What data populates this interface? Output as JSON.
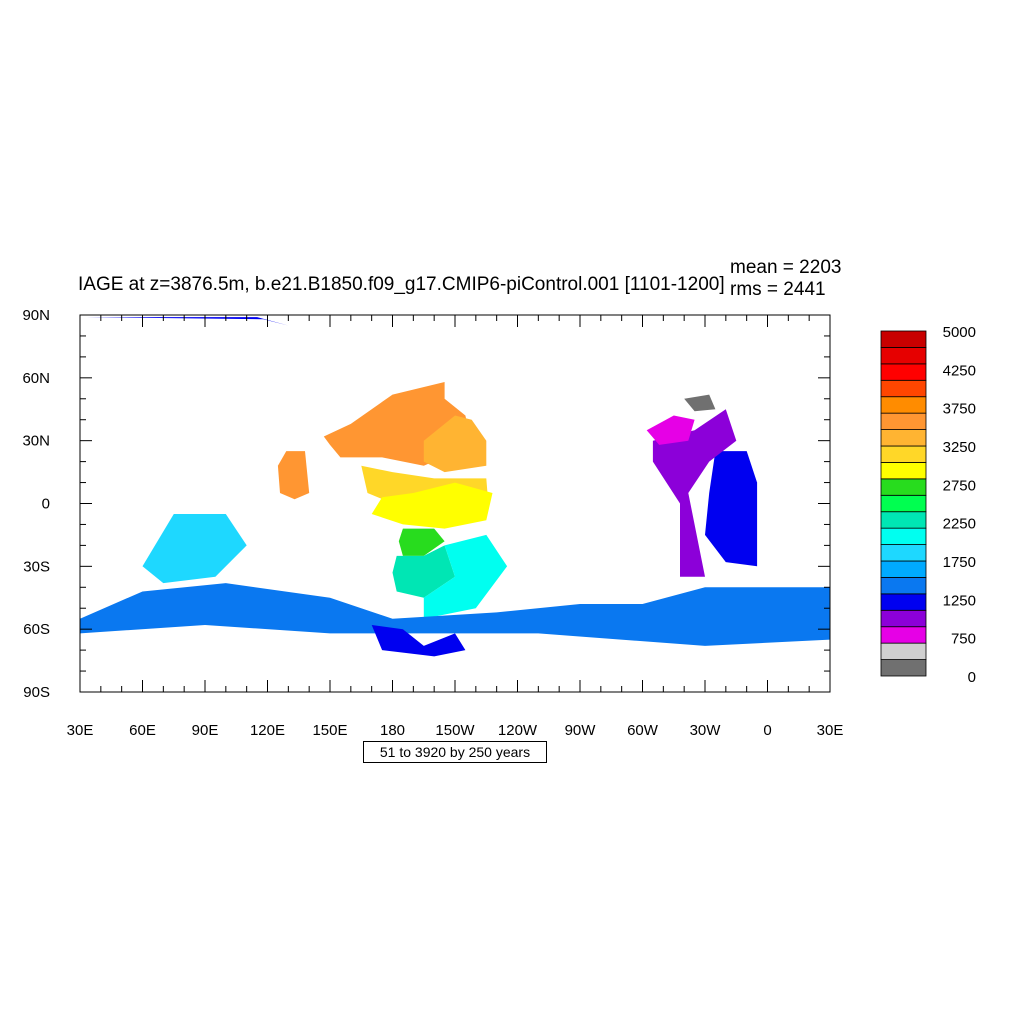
{
  "title": "IAGE at z=3876.5m, b.e21.B1850.f09_g17.CMIP6-piControl.001 [1101-1200]",
  "stats": {
    "mean": "mean = 2203",
    "rms": "rms = 2441"
  },
  "axes": {
    "x_labels": [
      "30E",
      "60E",
      "90E",
      "120E",
      "150E",
      "180",
      "150W",
      "120W",
      "90W",
      "60W",
      "30W",
      "0",
      "30E"
    ],
    "y_labels": [
      "90N",
      "60N",
      "30N",
      "0",
      "30S",
      "60S",
      "90S"
    ]
  },
  "info_box": "51 to 3920 by 250 years",
  "colorbar": {
    "colors": [
      "#707070",
      "#d0d0d0",
      "#e600e6",
      "#8c00d9",
      "#0000f0",
      "#0a78f0",
      "#00aaff",
      "#1ed8ff",
      "#00fff0",
      "#00e6b4",
      "#00ff50",
      "#28dc1e",
      "#ffff00",
      "#ffd728",
      "#ffb432",
      "#ff9632",
      "#ff8c00",
      "#ff4600",
      "#ff0000",
      "#e60000",
      "#c80000"
    ],
    "labels": [
      "0",
      "750",
      "1250",
      "1750",
      "2250",
      "2750",
      "3250",
      "3750",
      "4250",
      "5000"
    ]
  },
  "chart_data": {
    "type": "heatmap",
    "variable": "IAGE",
    "depth": "z=3876.5m",
    "case": "b.e21.B1850.f09_g17.CMIP6-piControl.001",
    "years": "1101-1200",
    "mean": 2203,
    "rms": 2441,
    "x_range": [
      30,
      390
    ],
    "y_range": [
      -90,
      90
    ],
    "contour_min": 51,
    "contour_max": 3920,
    "contour_interval": 250,
    "regions": [
      {
        "name": "north-pacific-orange",
        "level": 4000,
        "color": "#ff9632",
        "pts": [
          [
            147,
            32
          ],
          [
            160,
            38
          ],
          [
            180,
            52
          ],
          [
            205,
            58
          ],
          [
            205,
            50
          ],
          [
            215,
            42
          ],
          [
            218,
            28
          ],
          [
            195,
            18
          ],
          [
            175,
            22
          ],
          [
            155,
            22
          ],
          [
            150,
            28
          ]
        ]
      },
      {
        "name": "central-pacific-lightorange",
        "level": 3750,
        "color": "#ffb432",
        "pts": [
          [
            195,
            30
          ],
          [
            210,
            42
          ],
          [
            218,
            40
          ],
          [
            225,
            30
          ],
          [
            225,
            18
          ],
          [
            205,
            15
          ],
          [
            195,
            20
          ]
        ]
      },
      {
        "name": "west-pacific-orange",
        "level": 4000,
        "color": "#ff9632",
        "pts": [
          [
            129,
            25
          ],
          [
            138,
            25
          ],
          [
            140,
            5
          ],
          [
            133,
            2
          ],
          [
            126,
            5
          ],
          [
            125,
            18
          ]
        ]
      },
      {
        "name": "tropical-pacific-gold",
        "level": 3500,
        "color": "#ffd728",
        "pts": [
          [
            165,
            18
          ],
          [
            180,
            15
          ],
          [
            200,
            12
          ],
          [
            225,
            12
          ],
          [
            226,
            0
          ],
          [
            205,
            -5
          ],
          [
            185,
            -2
          ],
          [
            168,
            5
          ]
        ]
      },
      {
        "name": "equatorial-yellow",
        "level": 3250,
        "color": "#ffff00",
        "pts": [
          [
            170,
            -5
          ],
          [
            185,
            -10
          ],
          [
            205,
            -12
          ],
          [
            225,
            -8
          ],
          [
            228,
            5
          ],
          [
            210,
            10
          ],
          [
            190,
            5
          ],
          [
            175,
            3
          ]
        ]
      },
      {
        "name": "south-pacific-green",
        "level": 2800,
        "color": "#28dc1e",
        "pts": [
          [
            185,
            -12
          ],
          [
            200,
            -12
          ],
          [
            205,
            -18
          ],
          [
            195,
            -25
          ],
          [
            185,
            -25
          ],
          [
            183,
            -18
          ]
        ]
      },
      {
        "name": "south-pacific-mint",
        "level": 2600,
        "color": "#00e6b4",
        "pts": [
          [
            182,
            -25
          ],
          [
            195,
            -25
          ],
          [
            205,
            -20
          ],
          [
            210,
            -35
          ],
          [
            195,
            -45
          ],
          [
            182,
            -42
          ],
          [
            180,
            -33
          ]
        ]
      },
      {
        "name": "south-pacific-cyan",
        "level": 2100,
        "color": "#00fff0",
        "pts": [
          [
            205,
            -20
          ],
          [
            225,
            -15
          ],
          [
            235,
            -30
          ],
          [
            220,
            -50
          ],
          [
            195,
            -55
          ],
          [
            195,
            -45
          ],
          [
            210,
            -35
          ]
        ]
      },
      {
        "name": "indian-ocean-lightblue",
        "level": 1800,
        "color": "#1ed8ff",
        "pts": [
          [
            60,
            -30
          ],
          [
            75,
            -5
          ],
          [
            100,
            -5
          ],
          [
            110,
            -20
          ],
          [
            95,
            -35
          ],
          [
            70,
            -38
          ]
        ]
      },
      {
        "name": "southern-ocean-band",
        "level": 1300,
        "color": "#0a78f0",
        "pts": [
          [
            30,
            -55
          ],
          [
            60,
            -42
          ],
          [
            100,
            -38
          ],
          [
            150,
            -45
          ],
          [
            180,
            -55
          ],
          [
            230,
            -52
          ],
          [
            270,
            -48
          ],
          [
            300,
            -48
          ],
          [
            330,
            -40
          ],
          [
            390,
            -40
          ],
          [
            390,
            -65
          ],
          [
            330,
            -68
          ],
          [
            250,
            -62
          ],
          [
            200,
            -62
          ],
          [
            150,
            -62
          ],
          [
            90,
            -58
          ],
          [
            30,
            -62
          ]
        ]
      },
      {
        "name": "atlantic-blue",
        "level": 1000,
        "color": "#0000f0",
        "pts": [
          [
            335,
            25
          ],
          [
            350,
            25
          ],
          [
            355,
            10
          ],
          [
            355,
            -30
          ],
          [
            340,
            -28
          ],
          [
            330,
            -15
          ],
          [
            332,
            5
          ]
        ]
      },
      {
        "name": "atlantic-purple",
        "level": 800,
        "color": "#8c00d9",
        "pts": [
          [
            305,
            30
          ],
          [
            325,
            35
          ],
          [
            340,
            45
          ],
          [
            345,
            30
          ],
          [
            332,
            20
          ],
          [
            322,
            5
          ],
          [
            330,
            -35
          ],
          [
            318,
            -35
          ],
          [
            318,
            0
          ],
          [
            305,
            20
          ]
        ]
      },
      {
        "name": "north-atlantic-magenta",
        "level": 600,
        "color": "#e600e6",
        "pts": [
          [
            302,
            35
          ],
          [
            315,
            42
          ],
          [
            325,
            40
          ],
          [
            322,
            30
          ],
          [
            308,
            28
          ]
        ]
      },
      {
        "name": "greenland-gray",
        "level": 100,
        "color": "#707070",
        "pts": [
          [
            320,
            50
          ],
          [
            332,
            52
          ],
          [
            335,
            45
          ],
          [
            325,
            44
          ]
        ]
      },
      {
        "name": "arctic-blue",
        "level": 1000,
        "color": "#0000f0",
        "pts": [
          [
            33,
            89
          ],
          [
            115,
            89
          ],
          [
            130,
            85
          ],
          [
            118,
            88
          ]
        ]
      },
      {
        "name": "ross-sea-blue",
        "level": 1000,
        "color": "#0000f0",
        "pts": [
          [
            170,
            -58
          ],
          [
            185,
            -60
          ],
          [
            195,
            -68
          ],
          [
            210,
            -62
          ],
          [
            215,
            -70
          ],
          [
            200,
            -73
          ],
          [
            175,
            -70
          ]
        ]
      }
    ]
  }
}
